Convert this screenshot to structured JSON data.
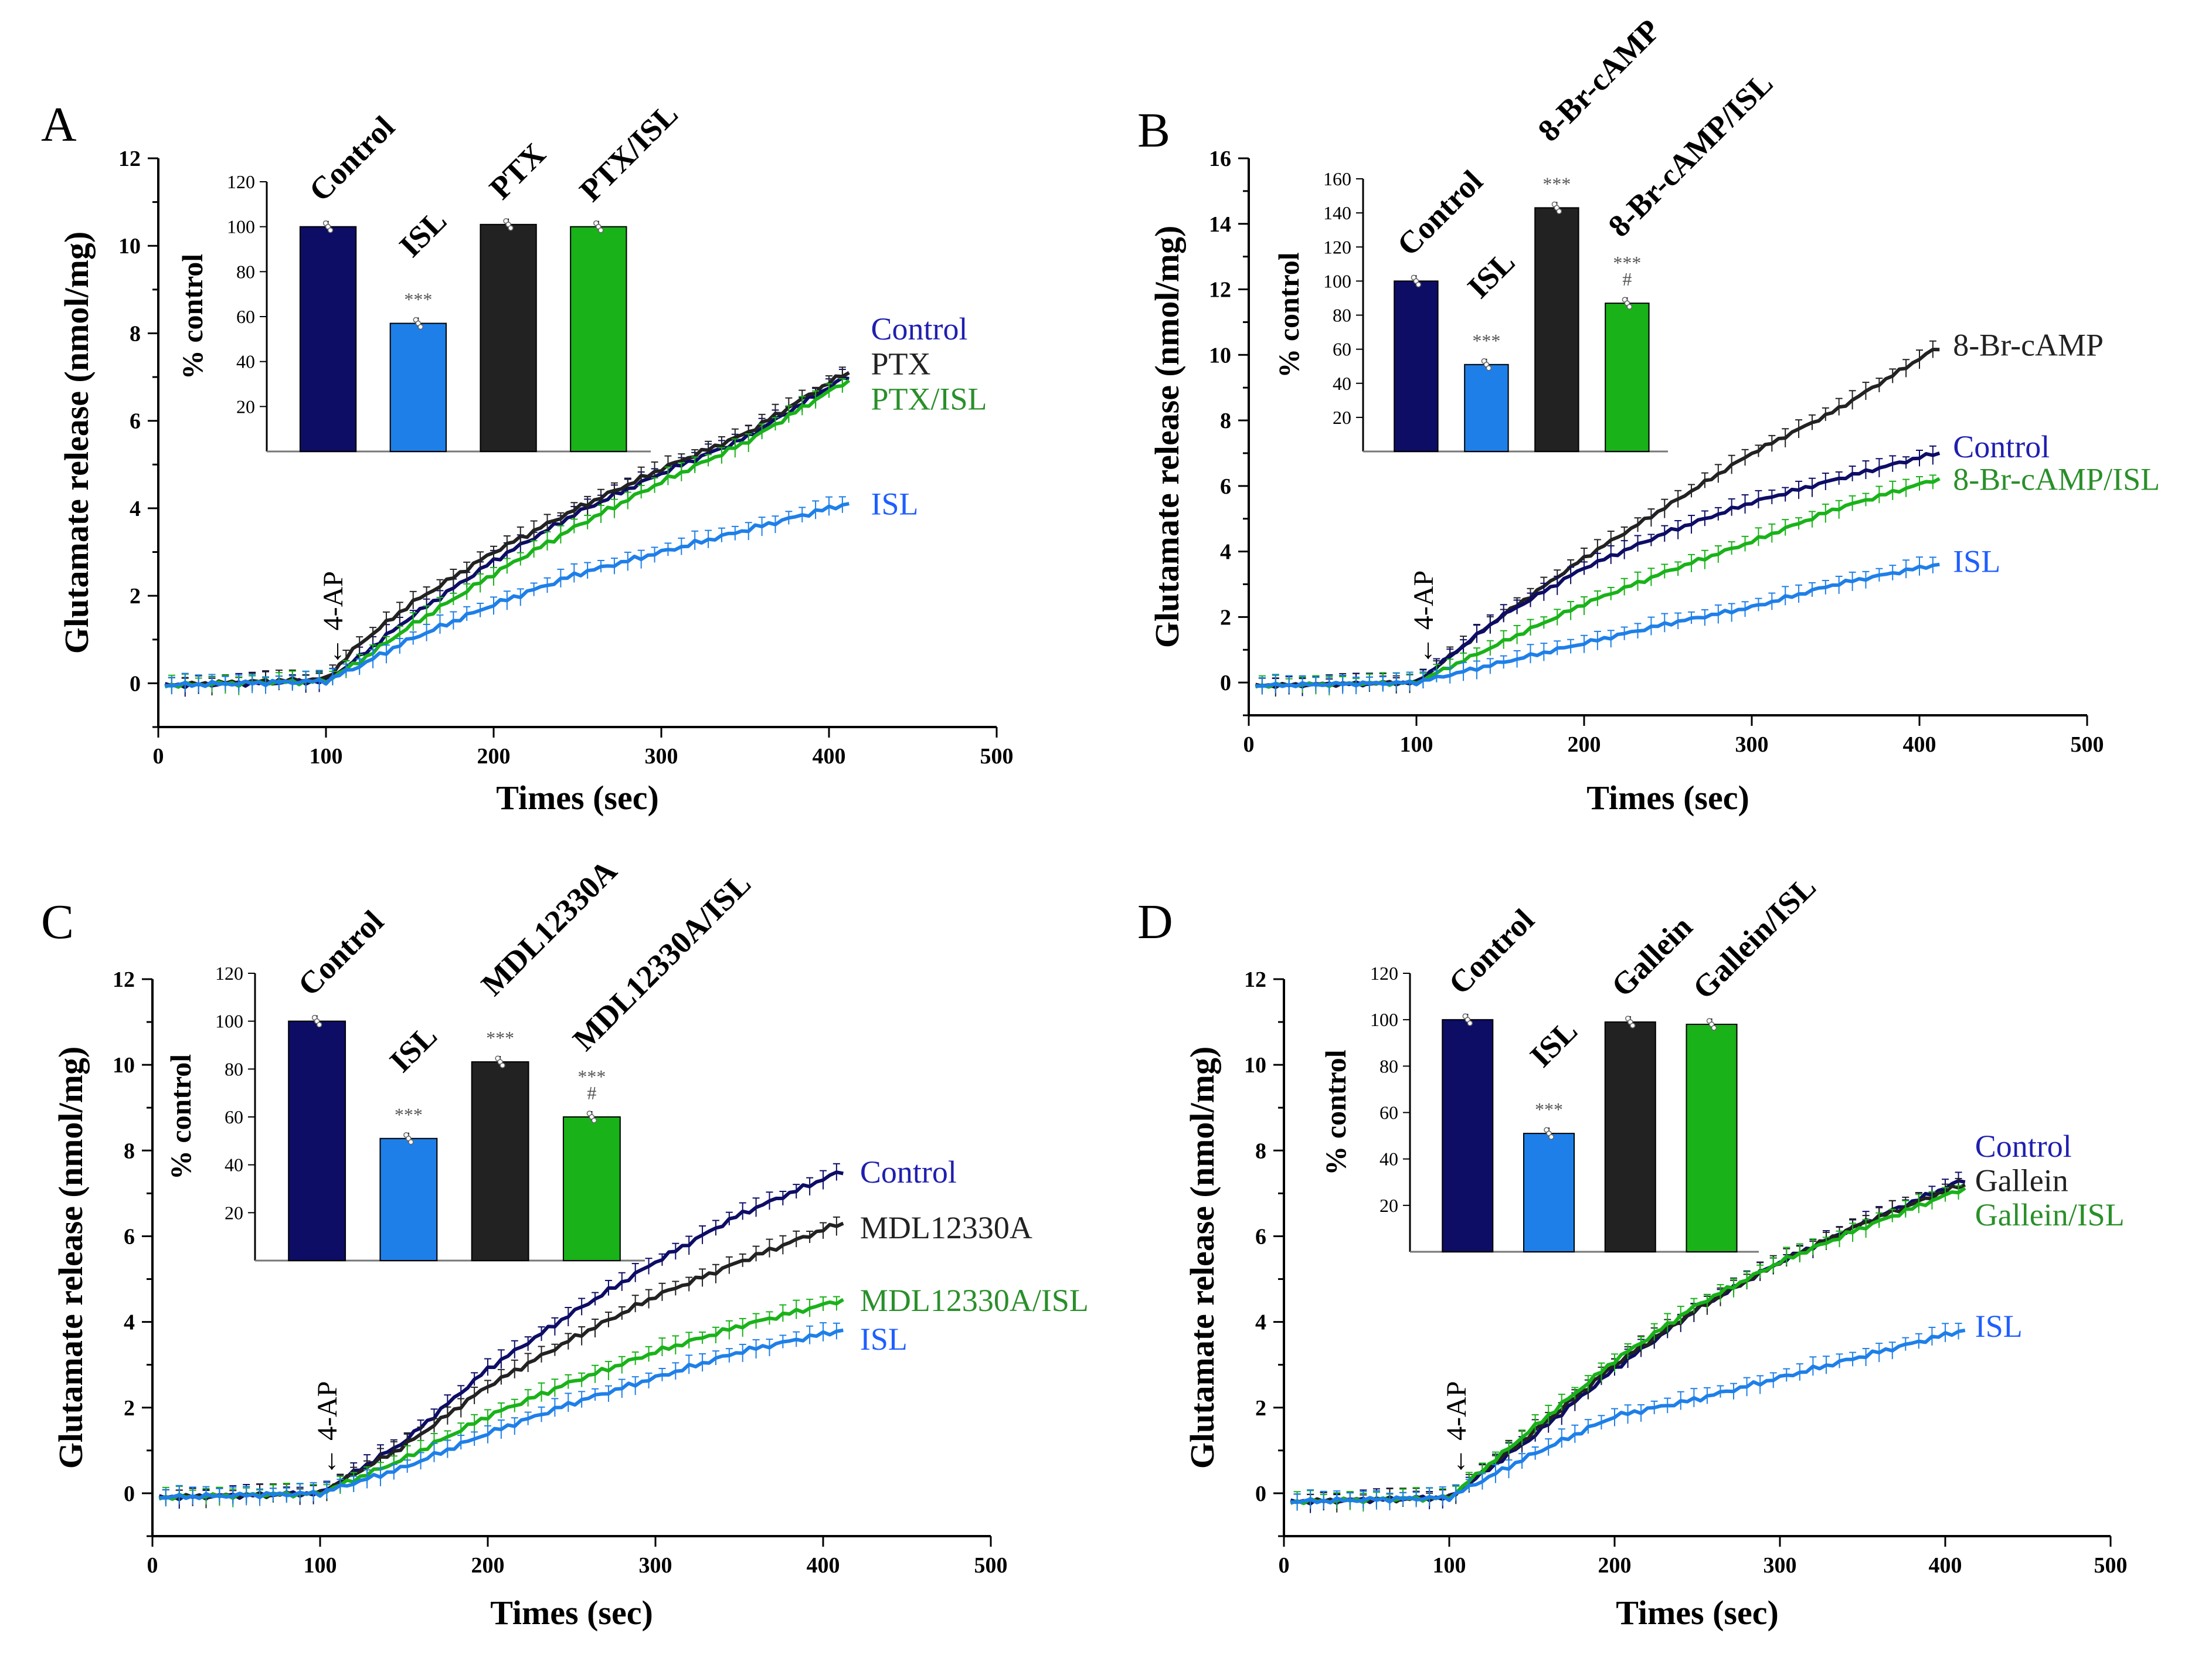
{
  "colors": {
    "control": "#0d0d66",
    "isl": "#1e7fe8",
    "treatment": "#222222",
    "combo": "#19b219",
    "control_text": "#1f1fb0",
    "isl_text": "#1f5fff",
    "combo_text": "#2a8f2a",
    "axis": "#000000"
  },
  "shared": {
    "ylabel": "Glutamate release (nmol/mg)",
    "xlabel": "Times (sec)",
    "inset_ylabel": "% control",
    "marker": "← 4-AP",
    "x_ticks": [
      "0",
      "100",
      "200",
      "300",
      "400",
      "500"
    ]
  },
  "chart_data": [
    {
      "panel": "A",
      "type": "line",
      "xlim": [
        0,
        500
      ],
      "ylim": [
        -1,
        12
      ],
      "y_ticks": [
        "0",
        "2",
        "4",
        "6",
        "8",
        "10",
        "12"
      ],
      "stimulus_time": 100,
      "series": [
        {
          "name": "Control",
          "color_key": "control",
          "points": [
            [
              0,
              -0.05
            ],
            [
              100,
              0.05
            ],
            [
              120,
              0.6
            ],
            [
              150,
              1.5
            ],
            [
              200,
              2.8
            ],
            [
              250,
              3.9
            ],
            [
              300,
              4.8
            ],
            [
              350,
              5.6
            ],
            [
              410,
              7.0
            ]
          ]
        },
        {
          "name": "PTX",
          "color_key": "treatment",
          "points": [
            [
              0,
              -0.05
            ],
            [
              100,
              0.1
            ],
            [
              120,
              0.9
            ],
            [
              150,
              1.8
            ],
            [
              200,
              3.0
            ],
            [
              250,
              4.0
            ],
            [
              300,
              4.9
            ],
            [
              350,
              5.7
            ],
            [
              410,
              7.1
            ]
          ]
        },
        {
          "name": "PTX/ISL",
          "color_key": "combo",
          "points": [
            [
              0,
              -0.05
            ],
            [
              100,
              0.05
            ],
            [
              120,
              0.5
            ],
            [
              150,
              1.3
            ],
            [
              200,
              2.5
            ],
            [
              250,
              3.6
            ],
            [
              300,
              4.6
            ],
            [
              350,
              5.5
            ],
            [
              410,
              6.9
            ]
          ]
        },
        {
          "name": "ISL",
          "color_key": "isl",
          "points": [
            [
              0,
              -0.05
            ],
            [
              100,
              0.05
            ],
            [
              120,
              0.4
            ],
            [
              150,
              1.0
            ],
            [
              200,
              1.8
            ],
            [
              250,
              2.5
            ],
            [
              300,
              3.0
            ],
            [
              350,
              3.5
            ],
            [
              410,
              4.1
            ]
          ]
        }
      ],
      "curve_labels": [
        {
          "text": "Control",
          "color_key": "control_text",
          "x": 425,
          "y": 8.1
        },
        {
          "text": "PTX",
          "color_key": "treatment",
          "x": 425,
          "y": 7.3
        },
        {
          "text": "PTX/ISL",
          "color_key": "combo_text",
          "x": 425,
          "y": 6.5
        },
        {
          "text": "ISL",
          "color_key": "isl_text",
          "x": 425,
          "y": 4.1
        }
      ],
      "inset": {
        "type": "bar",
        "ylim": [
          0,
          120
        ],
        "y_ticks": [
          "20",
          "40",
          "60",
          "80",
          "100",
          "120"
        ],
        "categories": [
          "Control",
          "ISL",
          "PTX",
          "PTX/ISL"
        ],
        "values": [
          100,
          57,
          101,
          100
        ],
        "bar_color_keys": [
          "control",
          "isl",
          "treatment",
          "combo"
        ],
        "stats": [
          "",
          "***",
          "",
          ""
        ]
      }
    },
    {
      "panel": "B",
      "type": "line",
      "xlim": [
        0,
        500
      ],
      "ylim": [
        -1,
        16
      ],
      "y_ticks": [
        "0",
        "2",
        "4",
        "6",
        "8",
        "10",
        "12",
        "14",
        "16"
      ],
      "stimulus_time": 100,
      "series": [
        {
          "name": "8-Br-cAMP",
          "color_key": "treatment",
          "points": [
            [
              0,
              -0.1
            ],
            [
              100,
              0.0
            ],
            [
              150,
              2.0
            ],
            [
              200,
              3.8
            ],
            [
              250,
              5.4
            ],
            [
              300,
              7.0
            ],
            [
              350,
              8.3
            ],
            [
              410,
              10.2
            ]
          ]
        },
        {
          "name": "Control",
          "color_key": "control",
          "points": [
            [
              0,
              -0.1
            ],
            [
              100,
              0.0
            ],
            [
              150,
              2.0
            ],
            [
              200,
              3.5
            ],
            [
              250,
              4.6
            ],
            [
              300,
              5.5
            ],
            [
              350,
              6.2
            ],
            [
              410,
              7.0
            ]
          ]
        },
        {
          "name": "8-Br-cAMP/ISL",
          "color_key": "combo",
          "points": [
            [
              0,
              -0.1
            ],
            [
              100,
              0.0
            ],
            [
              150,
              1.2
            ],
            [
              200,
              2.4
            ],
            [
              250,
              3.4
            ],
            [
              300,
              4.3
            ],
            [
              350,
              5.3
            ],
            [
              410,
              6.2
            ]
          ]
        },
        {
          "name": "ISL",
          "color_key": "isl",
          "points": [
            [
              0,
              -0.1
            ],
            [
              100,
              0.0
            ],
            [
              150,
              0.6
            ],
            [
              200,
              1.2
            ],
            [
              250,
              1.8
            ],
            [
              300,
              2.3
            ],
            [
              350,
              3.0
            ],
            [
              410,
              3.6
            ]
          ]
        }
      ],
      "curve_labels": [
        {
          "text": "8-Br-cAMP",
          "color_key": "treatment",
          "x": 420,
          "y": 10.3
        },
        {
          "text": "Control",
          "color_key": "control_text",
          "x": 420,
          "y": 7.2
        },
        {
          "text": "8-Br-cAMP/ISL",
          "color_key": "combo_text",
          "x": 420,
          "y": 6.2
        },
        {
          "text": "ISL",
          "color_key": "isl_text",
          "x": 420,
          "y": 3.7
        }
      ],
      "inset": {
        "type": "bar",
        "ylim": [
          0,
          160
        ],
        "y_ticks": [
          "20",
          "40",
          "60",
          "80",
          "100",
          "120",
          "140",
          "160"
        ],
        "categories": [
          "Control",
          "ISL",
          "8-Br-cAMP",
          "8-Br-cAMP/ISL"
        ],
        "values": [
          100,
          51,
          143,
          87
        ],
        "bar_color_keys": [
          "control",
          "isl",
          "treatment",
          "combo"
        ],
        "stats": [
          "",
          "***",
          "***",
          "*** #"
        ]
      }
    },
    {
      "panel": "C",
      "type": "line",
      "xlim": [
        0,
        500
      ],
      "ylim": [
        -1,
        12
      ],
      "y_ticks": [
        "0",
        "2",
        "4",
        "6",
        "8",
        "10",
        "12"
      ],
      "stimulus_time": 100,
      "series": [
        {
          "name": "Control",
          "color_key": "control",
          "points": [
            [
              0,
              -0.1
            ],
            [
              100,
              0.0
            ],
            [
              150,
              1.2
            ],
            [
              200,
              2.9
            ],
            [
              250,
              4.2
            ],
            [
              300,
              5.4
            ],
            [
              350,
              6.5
            ],
            [
              410,
              7.5
            ]
          ]
        },
        {
          "name": "MDL12330A",
          "color_key": "treatment",
          "points": [
            [
              0,
              -0.1
            ],
            [
              100,
              0.0
            ],
            [
              150,
              1.1
            ],
            [
              200,
              2.5
            ],
            [
              250,
              3.6
            ],
            [
              300,
              4.6
            ],
            [
              350,
              5.4
            ],
            [
              410,
              6.3
            ]
          ]
        },
        {
          "name": "MDL12330A/ISL",
          "color_key": "combo",
          "points": [
            [
              0,
              -0.1
            ],
            [
              100,
              0.0
            ],
            [
              150,
              0.8
            ],
            [
              200,
              1.8
            ],
            [
              250,
              2.6
            ],
            [
              300,
              3.3
            ],
            [
              350,
              3.9
            ],
            [
              410,
              4.5
            ]
          ]
        },
        {
          "name": "ISL",
          "color_key": "isl",
          "points": [
            [
              0,
              -0.1
            ],
            [
              100,
              0.0
            ],
            [
              150,
              0.6
            ],
            [
              200,
              1.4
            ],
            [
              250,
              2.1
            ],
            [
              300,
              2.7
            ],
            [
              350,
              3.3
            ],
            [
              410,
              3.8
            ]
          ]
        }
      ],
      "curve_labels": [
        {
          "text": "Control",
          "color_key": "control_text",
          "x": 422,
          "y": 7.5
        },
        {
          "text": "MDL12330A",
          "color_key": "treatment",
          "x": 422,
          "y": 6.2
        },
        {
          "text": "MDL12330A/ISL",
          "color_key": "combo_text",
          "x": 422,
          "y": 4.5
        },
        {
          "text": "ISL",
          "color_key": "isl_text",
          "x": 422,
          "y": 3.6
        }
      ],
      "inset": {
        "type": "bar",
        "ylim": [
          0,
          120
        ],
        "y_ticks": [
          "20",
          "40",
          "60",
          "80",
          "100",
          "120"
        ],
        "categories": [
          "Control",
          "ISL",
          "MDL12330A",
          "MDL12330A/ISL"
        ],
        "values": [
          100,
          51,
          83,
          60
        ],
        "bar_color_keys": [
          "control",
          "isl",
          "treatment",
          "combo"
        ],
        "stats": [
          "",
          "***",
          "***",
          "*** #"
        ]
      }
    },
    {
      "panel": "D",
      "type": "line",
      "xlim": [
        0,
        500
      ],
      "ylim": [
        -1,
        12
      ],
      "y_ticks": [
        "0",
        "2",
        "4",
        "6",
        "8",
        "10",
        "12"
      ],
      "stimulus_time": 100,
      "series": [
        {
          "name": "Control",
          "color_key": "control",
          "points": [
            [
              0,
              -0.2
            ],
            [
              100,
              -0.1
            ],
            [
              150,
              1.3
            ],
            [
              200,
              2.9
            ],
            [
              250,
              4.3
            ],
            [
              300,
              5.4
            ],
            [
              350,
              6.3
            ],
            [
              410,
              7.3
            ]
          ]
        },
        {
          "name": "Gallein",
          "color_key": "treatment",
          "points": [
            [
              0,
              -0.2
            ],
            [
              100,
              -0.1
            ],
            [
              150,
              1.4
            ],
            [
              200,
              3.0
            ],
            [
              250,
              4.3
            ],
            [
              300,
              5.4
            ],
            [
              350,
              6.3
            ],
            [
              410,
              7.2
            ]
          ]
        },
        {
          "name": "Gallein/ISL",
          "color_key": "combo",
          "points": [
            [
              0,
              -0.2
            ],
            [
              100,
              -0.1
            ],
            [
              150,
              1.5
            ],
            [
              200,
              3.1
            ],
            [
              250,
              4.4
            ],
            [
              300,
              5.4
            ],
            [
              350,
              6.2
            ],
            [
              410,
              7.1
            ]
          ]
        },
        {
          "name": "ISL",
          "color_key": "isl",
          "points": [
            [
              0,
              -0.2
            ],
            [
              100,
              -0.1
            ],
            [
              150,
              0.9
            ],
            [
              200,
              1.8
            ],
            [
              250,
              2.2
            ],
            [
              300,
              2.7
            ],
            [
              350,
              3.2
            ],
            [
              410,
              3.8
            ]
          ]
        }
      ],
      "curve_labels": [
        {
          "text": "Control",
          "color_key": "control_text",
          "x": 418,
          "y": 8.1
        },
        {
          "text": "Gallein",
          "color_key": "treatment",
          "x": 418,
          "y": 7.3
        },
        {
          "text": "Gallein/ISL",
          "color_key": "combo_text",
          "x": 418,
          "y": 6.5
        },
        {
          "text": "ISL",
          "color_key": "isl_text",
          "x": 418,
          "y": 3.9
        }
      ],
      "inset": {
        "type": "bar",
        "ylim": [
          0,
          120
        ],
        "y_ticks": [
          "20",
          "40",
          "60",
          "80",
          "100",
          "120"
        ],
        "categories": [
          "Control",
          "ISL",
          "Gallein",
          "Gallein/ISL"
        ],
        "values": [
          100,
          51,
          99,
          98
        ],
        "bar_color_keys": [
          "control",
          "isl",
          "treatment",
          "combo"
        ],
        "stats": [
          "",
          "***",
          "",
          ""
        ]
      }
    }
  ]
}
